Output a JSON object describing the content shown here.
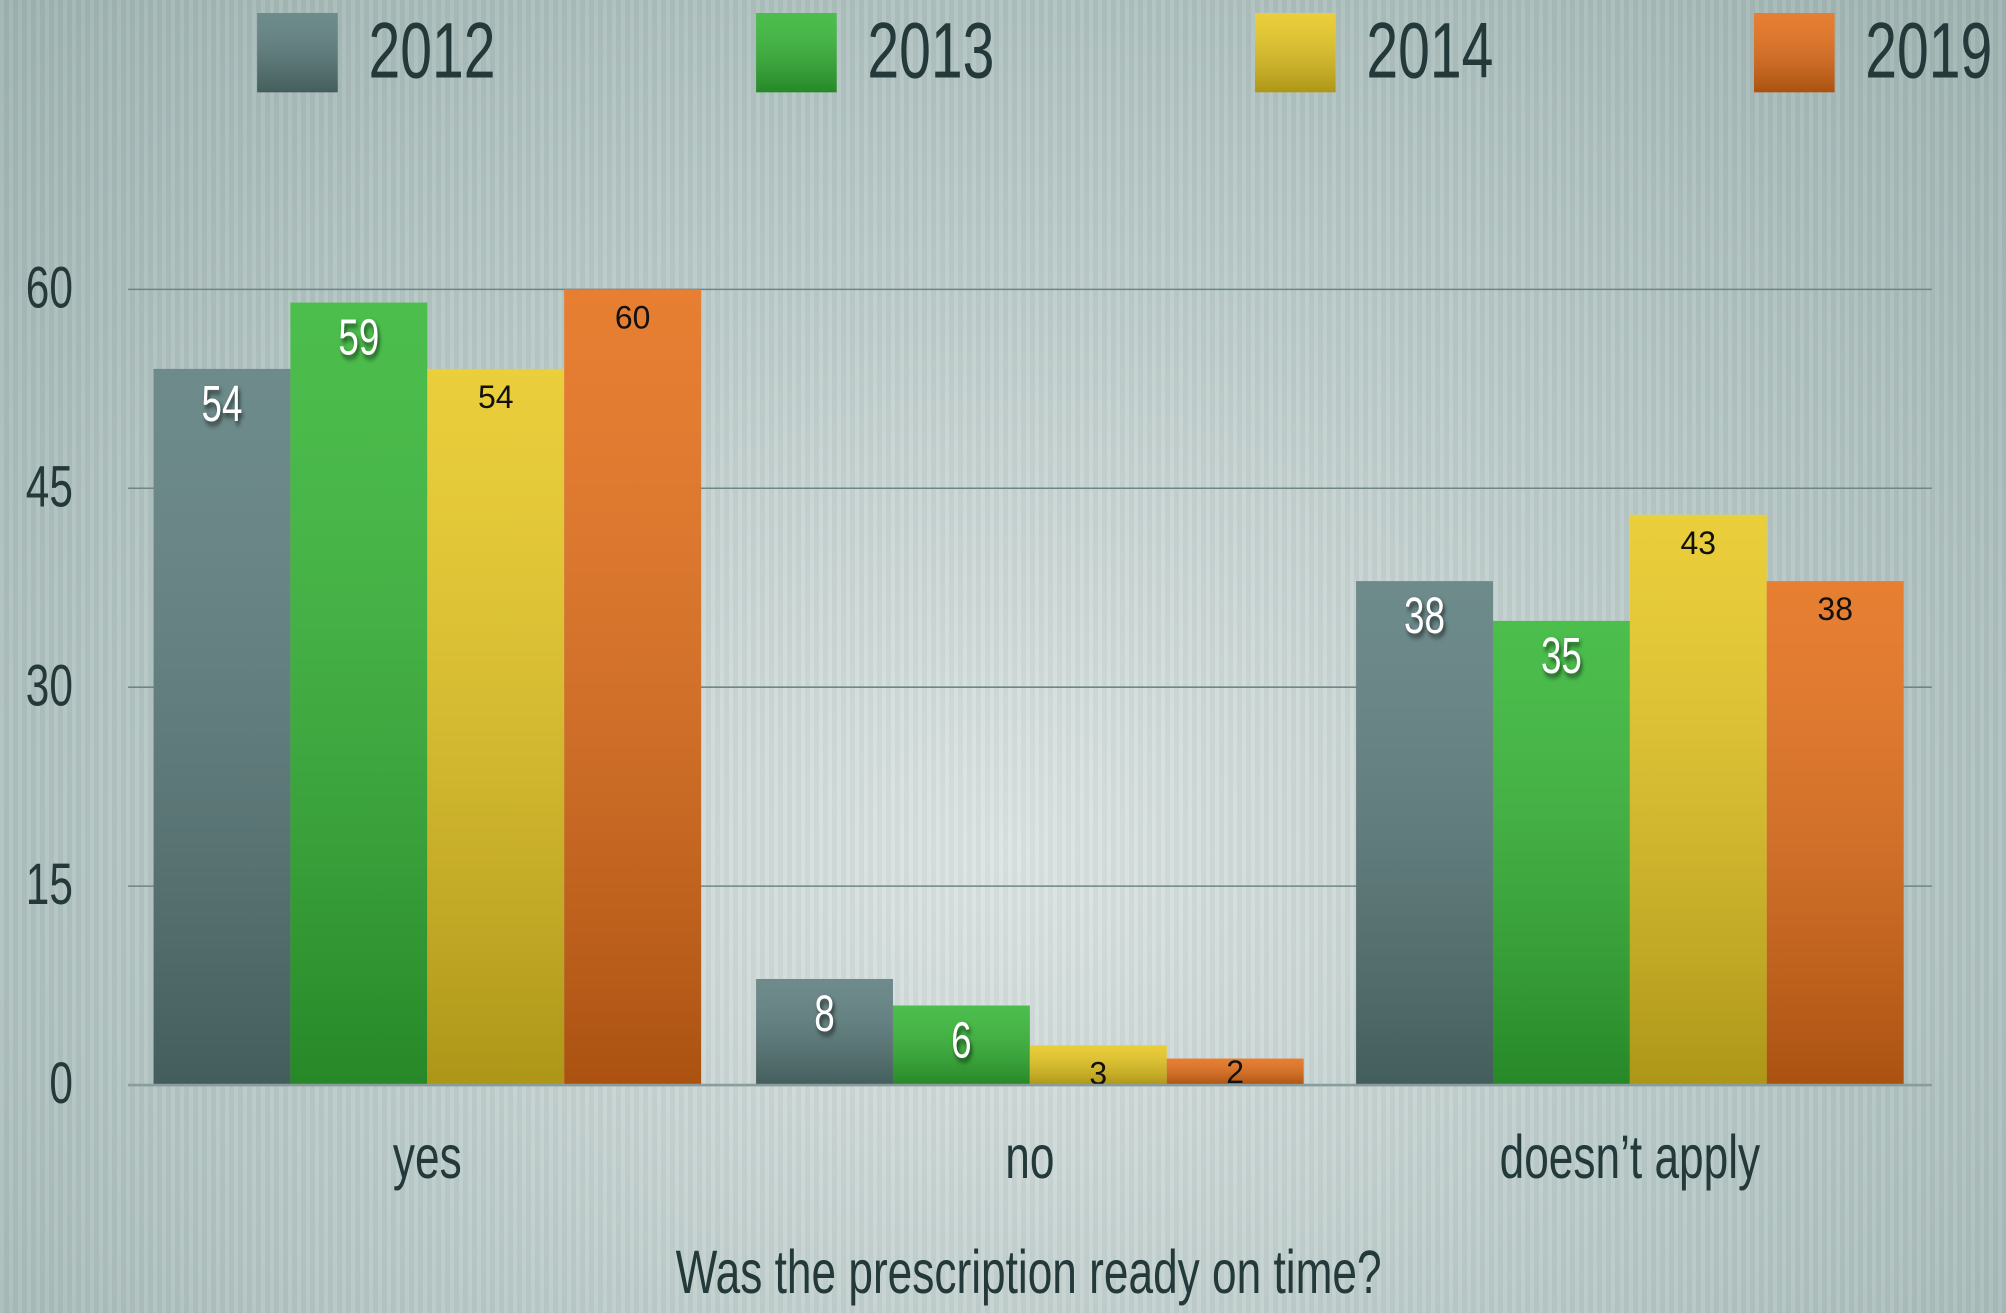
{
  "chart_data": {
    "type": "bar",
    "x_label": "Was the prescription ready on time?",
    "categories": [
      "yes",
      "no",
      "doesn’t apply"
    ],
    "series": [
      {
        "name": "2012",
        "color": "#5a7b7b",
        "values": [
          54,
          8,
          38
        ]
      },
      {
        "name": "2013",
        "color": "#33b534",
        "values": [
          59,
          6,
          35
        ]
      },
      {
        "name": "2014",
        "color": "#e7c71f",
        "values": [
          54,
          3,
          43
        ]
      },
      {
        "name": "2019",
        "color": "#e46d16",
        "values": [
          60,
          2,
          38
        ]
      }
    ],
    "ylim": [
      0,
      60
    ],
    "yticks": [
      0,
      15,
      30,
      45,
      60
    ],
    "grid": true,
    "legend": "top"
  }
}
